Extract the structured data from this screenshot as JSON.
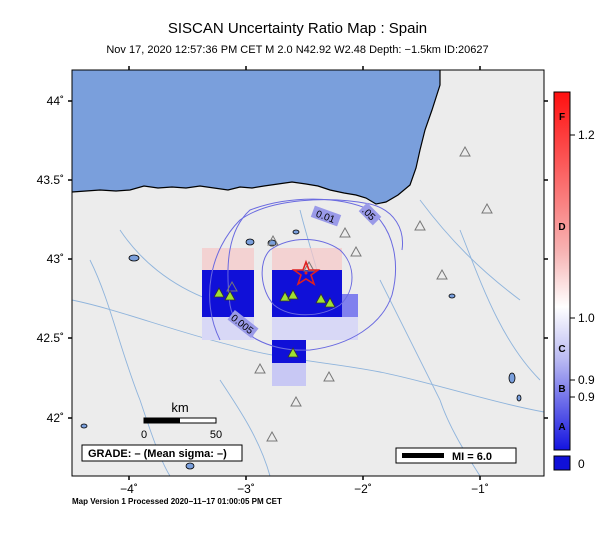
{
  "header": {
    "title": "SISCAN Uncertainty Ratio Map : Spain",
    "subtitle": "Nov 17, 2020 12:57:36 PM CET   M 2.0   N42.92 W2.48   Depth: −1.5km   ID:20627"
  },
  "axes": {
    "lat_labels": [
      "44˚",
      "43.5˚",
      "43˚",
      "42.5˚",
      "42˚"
    ],
    "lon_labels": [
      "−4˚",
      "−3˚",
      "−2˚",
      "−1˚"
    ]
  },
  "contours": {
    "labels": [
      "0.01",
      "0.005",
      ".05"
    ]
  },
  "scalebar": {
    "unit": "km",
    "tick_start": "0",
    "tick_end": "50"
  },
  "grade_box": {
    "text": "GRADE: – (Mean sigma: –)"
  },
  "mi_box": {
    "text": "MI = 6.0"
  },
  "colorbar": {
    "grade_letters": [
      "F",
      "D",
      "C",
      "B",
      "A"
    ],
    "value_labels": [
      "1.2",
      "1.0",
      "0.9",
      "0.9",
      "0"
    ]
  },
  "footer": {
    "text": "Map Version 1 Processed 2020−11−17 01:00:05 PM CET"
  },
  "colors": {
    "sea": "#7a9fdc",
    "land": "#ececec",
    "epicenter": "#e02020",
    "station": "#a0e030",
    "grid_cell": "#1010d8"
  }
}
